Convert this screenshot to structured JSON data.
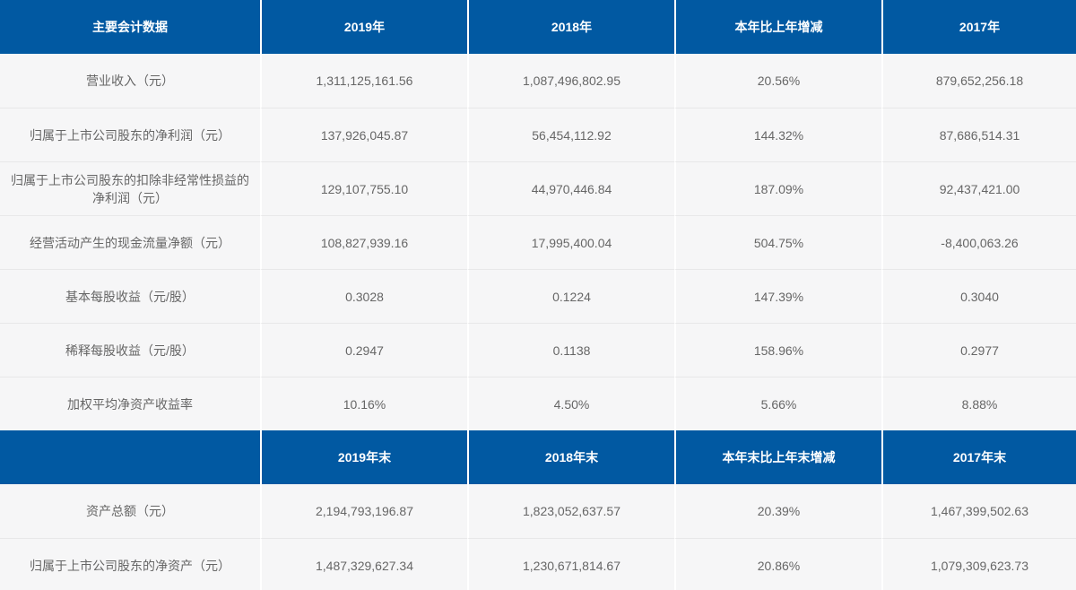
{
  "title": "主要会计数据",
  "colors": {
    "header_bg": "#0159A2",
    "header_text": "#ffffff",
    "row_bg": "#F6F6F7",
    "row_text": "#666666",
    "row_divider": "#E8E8E9",
    "column_divider": "#ffffff"
  },
  "sections": [
    {
      "header": [
        "主要会计数据",
        "2019年",
        "2018年",
        "本年比上年增减",
        "2017年"
      ],
      "rows": [
        [
          "营业收入（元）",
          "1,311,125,161.56",
          "1,087,496,802.95",
          "20.56%",
          "879,652,256.18"
        ],
        [
          "归属于上市公司股东的净利润（元）",
          "137,926,045.87",
          "56,454,112.92",
          "144.32%",
          "87,686,514.31"
        ],
        [
          "归属于上市公司股东的扣除非经常性损益的净利润（元）",
          "129,107,755.10",
          "44,970,446.84",
          "187.09%",
          "92,437,421.00"
        ],
        [
          "经营活动产生的现金流量净额（元）",
          "108,827,939.16",
          "17,995,400.04",
          "504.75%",
          "-8,400,063.26"
        ],
        [
          "基本每股收益（元/股）",
          "0.3028",
          "0.1224",
          "147.39%",
          "0.3040"
        ],
        [
          "稀释每股收益（元/股）",
          "0.2947",
          "0.1138",
          "158.96%",
          "0.2977"
        ],
        [
          "加权平均净资产收益率",
          "10.16%",
          "4.50%",
          "5.66%",
          "8.88%"
        ]
      ]
    },
    {
      "header": [
        "",
        "2019年末",
        "2018年末",
        "本年末比上年末增减",
        "2017年末"
      ],
      "rows": [
        [
          "资产总额（元）",
          "2,194,793,196.87",
          "1,823,052,637.57",
          "20.39%",
          "1,467,399,502.63"
        ],
        [
          "归属于上市公司股东的净资产（元）",
          "1,487,329,627.34",
          "1,230,671,814.67",
          "20.86%",
          "1,079,309,623.73"
        ]
      ]
    }
  ]
}
